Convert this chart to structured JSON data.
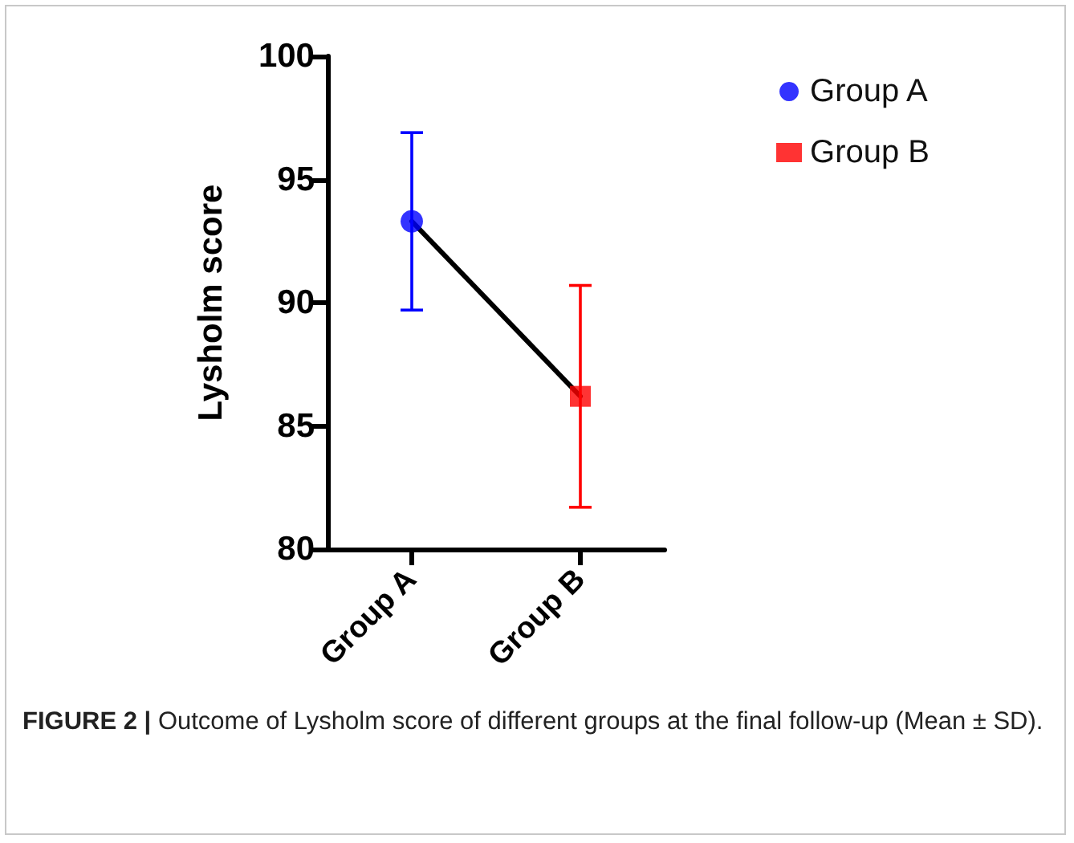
{
  "chart_data": {
    "type": "scatter",
    "ylabel": "Lysholm score",
    "categories": [
      "Group A",
      "Group B"
    ],
    "series": [
      {
        "type": "line",
        "color": "#000000",
        "values": [
          93.3,
          86.2
        ],
        "marker": "none",
        "line_style": "solid"
      },
      {
        "name": "Group A",
        "color": "#0000ff",
        "values": [
          93.3,
          null
        ],
        "errors": [
          3.6,
          null
        ],
        "marker": "circle"
      },
      {
        "name": "Group B",
        "color": "#ff0000",
        "values": [
          null,
          86.2
        ],
        "errors": [
          null,
          4.5
        ],
        "marker": "square"
      }
    ],
    "ylim": [
      80,
      100
    ],
    "yticks": [
      80,
      85,
      90,
      95,
      100
    ],
    "grid": false,
    "legend": "top right",
    "annotations": [
      "FIGURE 2 | Outcome of Lysholm score of different groups at the final follow-up (Mean ± SD)."
    ]
  }
}
